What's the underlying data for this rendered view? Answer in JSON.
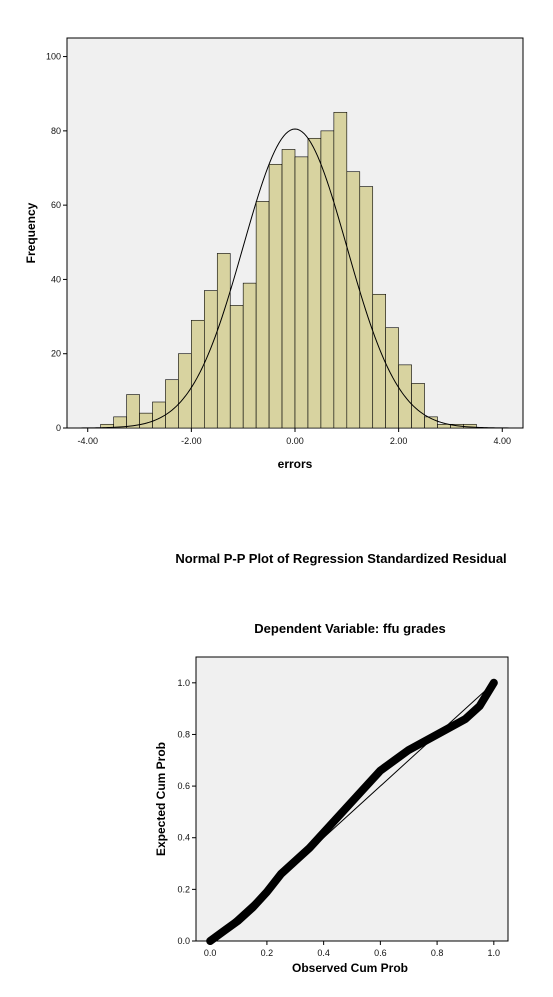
{
  "chart_data": [
    {
      "type": "histogram",
      "xlabel": "errors",
      "ylabel": "Frequency",
      "xlim": [
        -4.4,
        4.4
      ],
      "ylim": [
        0,
        105
      ],
      "x_ticks": [
        {
          "value": -4,
          "label": "-4.00"
        },
        {
          "value": -2,
          "label": "-2.00"
        },
        {
          "value": 0,
          "label": "0.00"
        },
        {
          "value": 2,
          "label": "2.00"
        },
        {
          "value": 4,
          "label": "4.00"
        }
      ],
      "y_ticks": [
        {
          "value": 0,
          "label": "0"
        },
        {
          "value": 20,
          "label": "20"
        },
        {
          "value": 40,
          "label": "40"
        },
        {
          "value": 60,
          "label": "60"
        },
        {
          "value": 80,
          "label": "80"
        },
        {
          "value": 100,
          "label": "100"
        }
      ],
      "bin_width": 0.25,
      "bin_start": -3.75,
      "counts": [
        1,
        3,
        9,
        4,
        7,
        13,
        20,
        29,
        37,
        47,
        33,
        39,
        61,
        71,
        75,
        73,
        78,
        80,
        85,
        69,
        65,
        36,
        27,
        17,
        12,
        3,
        1,
        1,
        1
      ],
      "normal_curve": {
        "mean": 0.0,
        "peak": 80.5,
        "sd": 1.0
      },
      "bar_color": "#d8d3a0",
      "plot_background": "#f0f0f0",
      "grid": false
    },
    {
      "type": "scatter",
      "title": "Normal P-P Plot of Regression Standardized Residual",
      "subtitle": "Dependent Variable: ffu grades",
      "xlabel": "Observed Cum Prob",
      "ylabel": "Expected Cum Prob",
      "xlim": [
        -0.05,
        1.05
      ],
      "ylim": [
        0,
        1.1
      ],
      "x_ticks": [
        {
          "value": 0,
          "label": "0.0"
        },
        {
          "value": 0.2,
          "label": "0.2"
        },
        {
          "value": 0.4,
          "label": "0.4"
        },
        {
          "value": 0.6,
          "label": "0.6"
        },
        {
          "value": 0.8,
          "label": "0.8"
        },
        {
          "value": 1.0,
          "label": "1.0"
        }
      ],
      "y_ticks": [
        {
          "value": 0,
          "label": "0.0"
        },
        {
          "value": 0.2,
          "label": "0.2"
        },
        {
          "value": 0.4,
          "label": "0.4"
        },
        {
          "value": 0.6,
          "label": "0.6"
        },
        {
          "value": 0.8,
          "label": "0.8"
        },
        {
          "value": 1.0,
          "label": "1.0"
        }
      ],
      "points": [
        [
          0.0,
          0.0
        ],
        [
          0.05,
          0.04
        ],
        [
          0.1,
          0.08
        ],
        [
          0.15,
          0.13
        ],
        [
          0.2,
          0.19
        ],
        [
          0.25,
          0.26
        ],
        [
          0.3,
          0.31
        ],
        [
          0.35,
          0.36
        ],
        [
          0.4,
          0.42
        ],
        [
          0.45,
          0.48
        ],
        [
          0.5,
          0.54
        ],
        [
          0.55,
          0.6
        ],
        [
          0.6,
          0.66
        ],
        [
          0.65,
          0.7
        ],
        [
          0.7,
          0.74
        ],
        [
          0.75,
          0.77
        ],
        [
          0.8,
          0.8
        ],
        [
          0.85,
          0.83
        ],
        [
          0.9,
          0.86
        ],
        [
          0.95,
          0.91
        ],
        [
          1.0,
          1.0
        ]
      ],
      "reference_line": [
        [
          0,
          0
        ],
        [
          1,
          1
        ]
      ],
      "plot_background": "#f0f0f0",
      "grid": false
    }
  ]
}
